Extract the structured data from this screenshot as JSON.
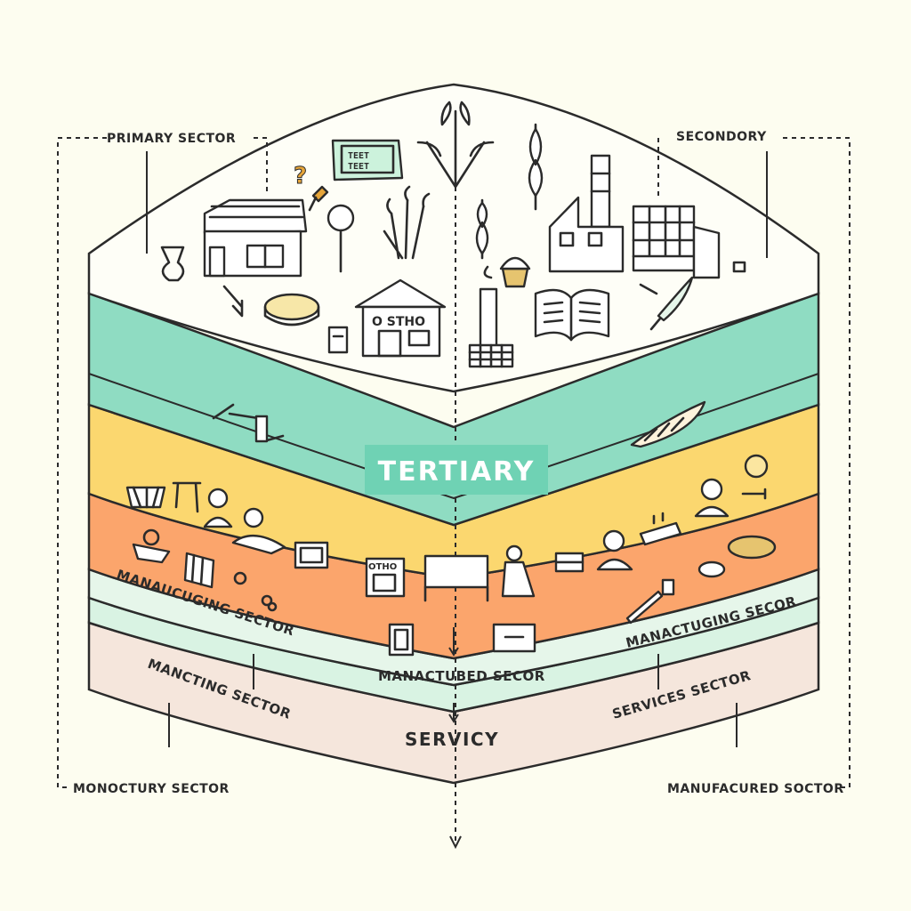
{
  "labels": {
    "primary": "PRIMARY SECTOR",
    "secondary": "SECONDORY",
    "tertiary": "TERTIARY",
    "service": "SERVICY",
    "manufacturing_left": "MANAUCUGING SECTOR",
    "manufacturing_right": "MANACTUGING SECOR",
    "manacturbed": "MANACTUBED SECOR",
    "mancting": "MANCTING SECTOR",
    "services": "SERVICES SECTOR",
    "monoctury": "MONOCTURY SECTOR",
    "manufacured": "MANUFACURED SOCTOR"
  },
  "signs": {
    "top_sign": "TEET TEET",
    "shop_sign": "O STHO",
    "small_shop_sign": "OTHO"
  },
  "colors": {
    "background": "#fdfdf0",
    "teal_band": "#8fdcc2",
    "yellow_band": "#fbd76f",
    "orange_band": "#fba56c",
    "mint_band": "#d9f3e3",
    "bottom_band": "#f5e6dc",
    "tertiary_badge": "#6fd2b4",
    "accent_green": "#2f6e4f"
  },
  "icons": [
    "house-icon",
    "magnifier-icon",
    "wheat-icon",
    "factory-icon",
    "building-icon",
    "book-icon",
    "shop-icon",
    "tower-icon",
    "tape-roll-icon",
    "vase-icon",
    "question-mark-icon",
    "quill-icon",
    "cupcake-icon",
    "person-icon",
    "chair-icon",
    "table-icon",
    "laptop-icon",
    "boat-icon",
    "frame-icon",
    "box-icon",
    "clock-icon",
    "key-icon",
    "flower-icon",
    "tool-icon"
  ]
}
